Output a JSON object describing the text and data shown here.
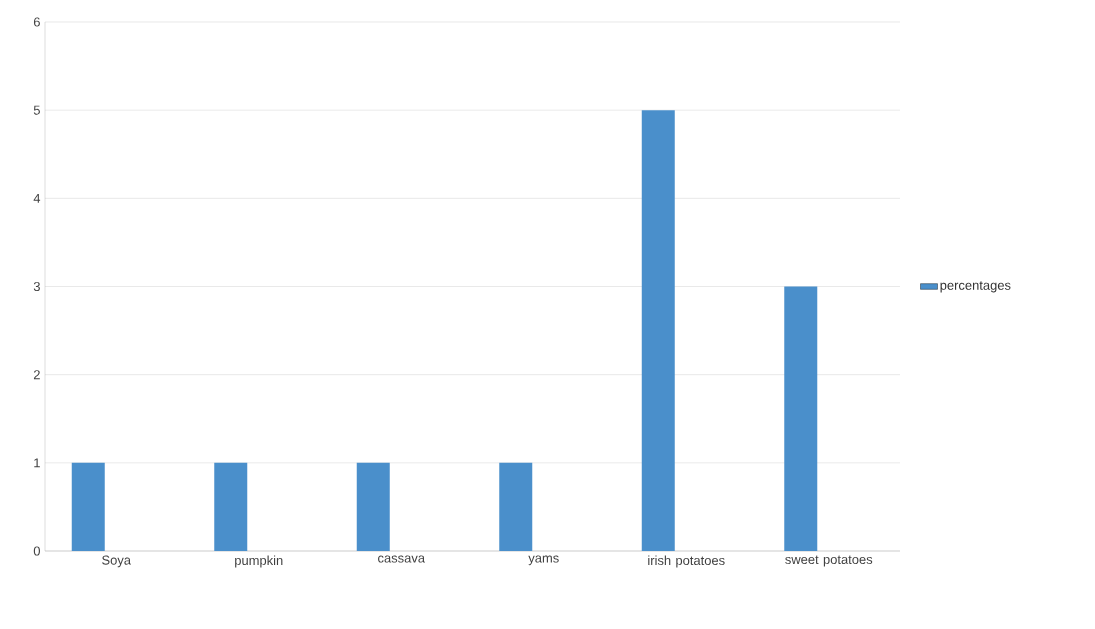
{
  "chart_data": {
    "type": "bar",
    "categories": [
      "Soya",
      "pumpkin",
      "cassava",
      "yams",
      "irish potatoes",
      "sweet potatoes"
    ],
    "series": [
      {
        "name": "percentages",
        "color": "#4a8fcb",
        "values": [
          1,
          1,
          1,
          1,
          5,
          3
        ]
      }
    ],
    "ylim": [
      0,
      6
    ],
    "yticks": [
      0,
      1,
      2,
      3,
      4,
      5,
      6
    ],
    "grid": "y",
    "legend": "right"
  }
}
